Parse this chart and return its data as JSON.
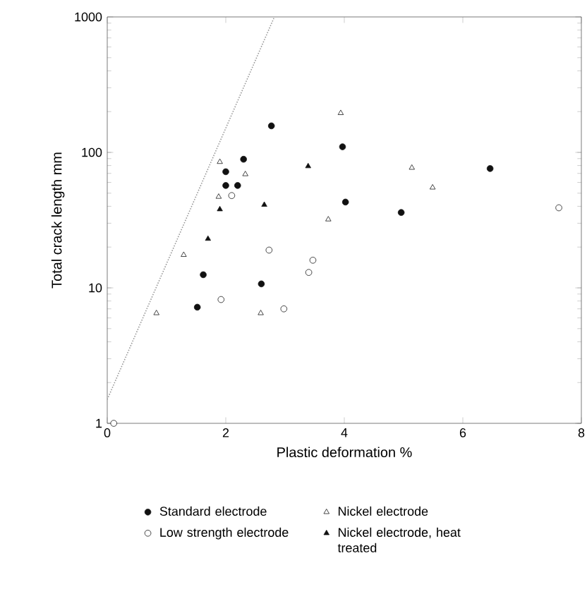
{
  "chart_data": {
    "type": "scatter",
    "xlabel": "Plastic deformation %",
    "ylabel": "Total crack length mm",
    "xlim": [
      0,
      8
    ],
    "ylim": [
      1,
      1000
    ],
    "xticks": [
      0,
      2,
      4,
      6,
      8
    ],
    "yticks": [
      1,
      10,
      100,
      1000
    ],
    "log": "y",
    "grid": false,
    "legend": "bottom",
    "series": [
      {
        "name": "Standard electrode",
        "color": "#111111",
        "marker": "circle",
        "x": [
          2.77,
          2.3,
          2.0,
          2.0,
          2.2,
          3.97,
          6.46,
          4.02,
          4.96,
          1.62,
          2.6,
          1.52
        ],
        "values": [
          157,
          89,
          72,
          57,
          57,
          110,
          76,
          43,
          36,
          12.5,
          10.7,
          7.2
        ]
      },
      {
        "name": "Nickel electrode",
        "color": "#ffffff",
        "marker": "triangle",
        "x": [
          1.9,
          2.33,
          1.88,
          3.73,
          1.29,
          3.94,
          5.14,
          5.49,
          0.83,
          2.59
        ],
        "values": [
          85,
          69,
          47,
          32,
          17.5,
          195,
          77,
          55,
          6.5,
          6.5
        ]
      },
      {
        "name": "Low strength electrode",
        "color": "#ffffff",
        "marker": "circle",
        "x": [
          2.1,
          2.73,
          7.62,
          3.47,
          3.4,
          1.92,
          2.98,
          0.11
        ],
        "values": [
          48,
          19,
          39,
          16,
          13,
          8.2,
          7.0,
          1.0
        ]
      },
      {
        "name": "Nickel electrode, heat treated",
        "color": "#111111",
        "marker": "triangle",
        "x": [
          1.9,
          3.39,
          2.65,
          1.7
        ],
        "values": [
          38,
          79,
          41,
          23
        ]
      },
      {
        "type": "line",
        "color": "#999999",
        "line_style": "dotted",
        "marker": "none",
        "x": [
          0,
          2.82
        ],
        "values": [
          1.5,
          1000
        ]
      }
    ]
  }
}
